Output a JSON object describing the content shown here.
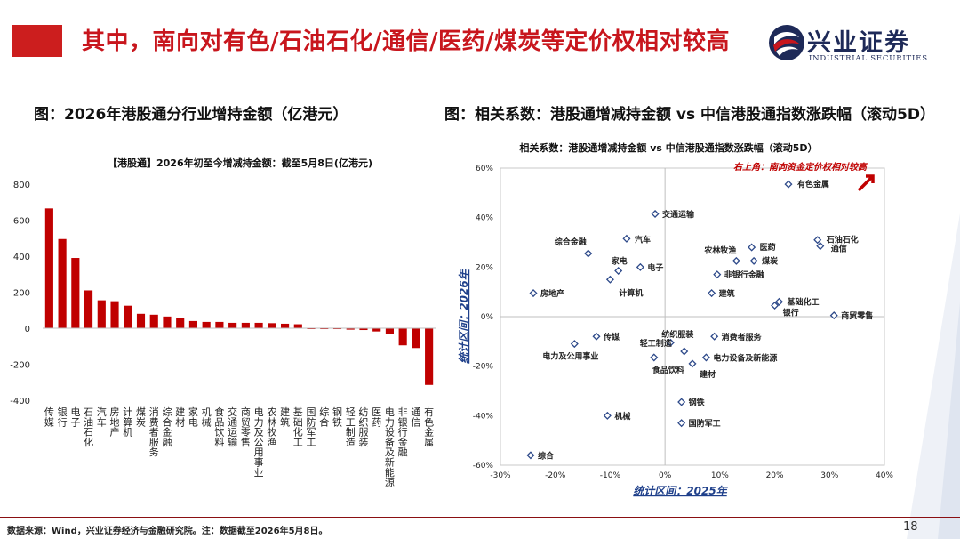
{
  "header": {
    "title": "其中，南向对有色/石油石化/通信/医药/煤炭等定价权相对较高",
    "logo_cn": "兴业证券",
    "logo_en": "INDUSTRIAL SECURITIES",
    "accent_color": "#c8161d",
    "logo_color": "#1e2a58"
  },
  "left_figure": {
    "caption": "图：2026年港股通分行业增持金额（亿港元）"
  },
  "right_figure": {
    "caption": "图：相关系数：港股通增减持金额 vs 中信港股通指数涨跌幅（滚动5D）"
  },
  "chart_data": [
    {
      "type": "bar",
      "title": "【港股通】2026年初至今增减持金额：截至5月8日(亿港元)",
      "bar_color": "#c00000",
      "ylim": [
        -400,
        800
      ],
      "yticks": [
        800,
        600,
        400,
        200,
        0,
        -200,
        -400
      ],
      "categories": [
        "传媒",
        "银行",
        "电子",
        "石油石化",
        "汽车",
        "房地产",
        "计算机",
        "煤炭",
        "消费者服务",
        "综合金融",
        "建材",
        "家电",
        "机械",
        "食品饮料",
        "交通运输",
        "商贸零售",
        "电力及公用事业",
        "农林牧渔",
        "建筑",
        "基础化工",
        "国防军工",
        "综合",
        "钢铁",
        "轻工制造",
        "纺织服装",
        "医药",
        "电力设备及新能源",
        "非银行金融",
        "通信",
        "有色金属"
      ],
      "values": [
        665,
        495,
        390,
        210,
        155,
        150,
        125,
        80,
        75,
        65,
        55,
        40,
        35,
        35,
        30,
        30,
        30,
        28,
        25,
        22,
        -3,
        -5,
        -5,
        -8,
        -10,
        -18,
        -30,
        -95,
        -110,
        -315
      ]
    },
    {
      "type": "scatter",
      "title": "相关系数：港股通增减持金额 vs 中信港股通指数涨跌幅（滚动5D）",
      "xlabel": "统计区间：2025年",
      "ylabel": "统计区间：2026年",
      "xlim": [
        -30,
        40
      ],
      "ylim": [
        -60,
        60
      ],
      "xticks": [
        -30,
        -20,
        -10,
        0,
        10,
        20,
        30,
        40
      ],
      "yticks": [
        60,
        40,
        20,
        0,
        -20,
        -40,
        -60
      ],
      "tick_suffix": "%",
      "annotation": "右上角：南向资金定价权相对较高",
      "marker_color": "#2e4a8a",
      "points": [
        {
          "name": "有色金属",
          "x": 22.5,
          "y": 53.5
        },
        {
          "name": "交通运输",
          "x": -1.8,
          "y": 41.5
        },
        {
          "name": "汽车",
          "x": -7,
          "y": 31.5
        },
        {
          "name": "综合金融",
          "x": -14,
          "y": 25.5
        },
        {
          "name": "石油石化",
          "x": 27.8,
          "y": 31
        },
        {
          "name": "通信",
          "x": 28.3,
          "y": 28.5
        },
        {
          "name": "医药",
          "x": 15.8,
          "y": 28
        },
        {
          "name": "农林牧渔",
          "x": 13,
          "y": 22.5
        },
        {
          "name": "煤炭",
          "x": 16.2,
          "y": 22.5
        },
        {
          "name": "家电",
          "x": -8.5,
          "y": 18.5
        },
        {
          "name": "电子",
          "x": -4.5,
          "y": 20
        },
        {
          "name": "非银行金融",
          "x": 9.5,
          "y": 17
        },
        {
          "name": "计算机",
          "x": -10,
          "y": 15
        },
        {
          "name": "房地产",
          "x": -24,
          "y": 9.5
        },
        {
          "name": "建筑",
          "x": 8.5,
          "y": 9.5
        },
        {
          "name": "基础化工",
          "x": 20.8,
          "y": 6
        },
        {
          "name": "银行",
          "x": 20,
          "y": 4.5
        },
        {
          "name": "商贸零售",
          "x": 30.8,
          "y": 0.5
        },
        {
          "name": "传媒",
          "x": -12.5,
          "y": -8
        },
        {
          "name": "纺织服装",
          "x": 1,
          "y": -10.5
        },
        {
          "name": "消费者服务",
          "x": 9,
          "y": -8
        },
        {
          "name": "轻工制造",
          "x": 3.5,
          "y": -14
        },
        {
          "name": "电力及公用事业",
          "x": -16.5,
          "y": -11
        },
        {
          "name": "电力设备及新能源",
          "x": 7.5,
          "y": -16.5
        },
        {
          "name": "食品饮料",
          "x": -2,
          "y": -16.5
        },
        {
          "name": "建材",
          "x": 5,
          "y": -19
        },
        {
          "name": "钢铁",
          "x": 3,
          "y": -34.5
        },
        {
          "name": "机械",
          "x": -10.5,
          "y": -40
        },
        {
          "name": "国防军工",
          "x": 3,
          "y": -43
        },
        {
          "name": "综合",
          "x": -24.5,
          "y": -56
        }
      ]
    }
  ],
  "footer": {
    "source": "数据来源：Wind，兴业证券经济与金融研究院。注：数据截至2026年5月8日。",
    "page": "18"
  }
}
